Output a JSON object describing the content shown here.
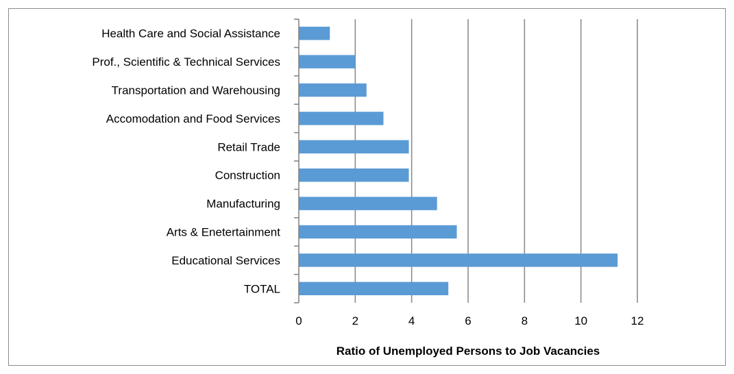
{
  "chart_data": {
    "type": "bar",
    "orientation": "horizontal",
    "title": "",
    "xlabel": "Ratio of Unemployed Persons to Job Vacancies",
    "ylabel": "",
    "categories": [
      "Health Care and Social Assistance",
      "Prof., Scientific & Technical Services",
      "Transportation and Warehousing",
      "Accomodation and Food Services",
      "Retail Trade",
      "Construction",
      "Manufacturing",
      "Arts & Enetertainment",
      "Educational Services",
      "TOTAL"
    ],
    "values": [
      1.1,
      2.0,
      2.4,
      3.0,
      3.9,
      3.9,
      4.9,
      5.6,
      11.3,
      5.3
    ],
    "xlim": [
      0,
      12
    ],
    "xticks": [
      "0",
      "2",
      "4",
      "6",
      "8",
      "10",
      "12"
    ],
    "grid": "vertical",
    "legend": "none",
    "bar_color": "#5b9bd5",
    "grid_color": "#8c8c8c",
    "axis_color": "#7f7f7f"
  }
}
